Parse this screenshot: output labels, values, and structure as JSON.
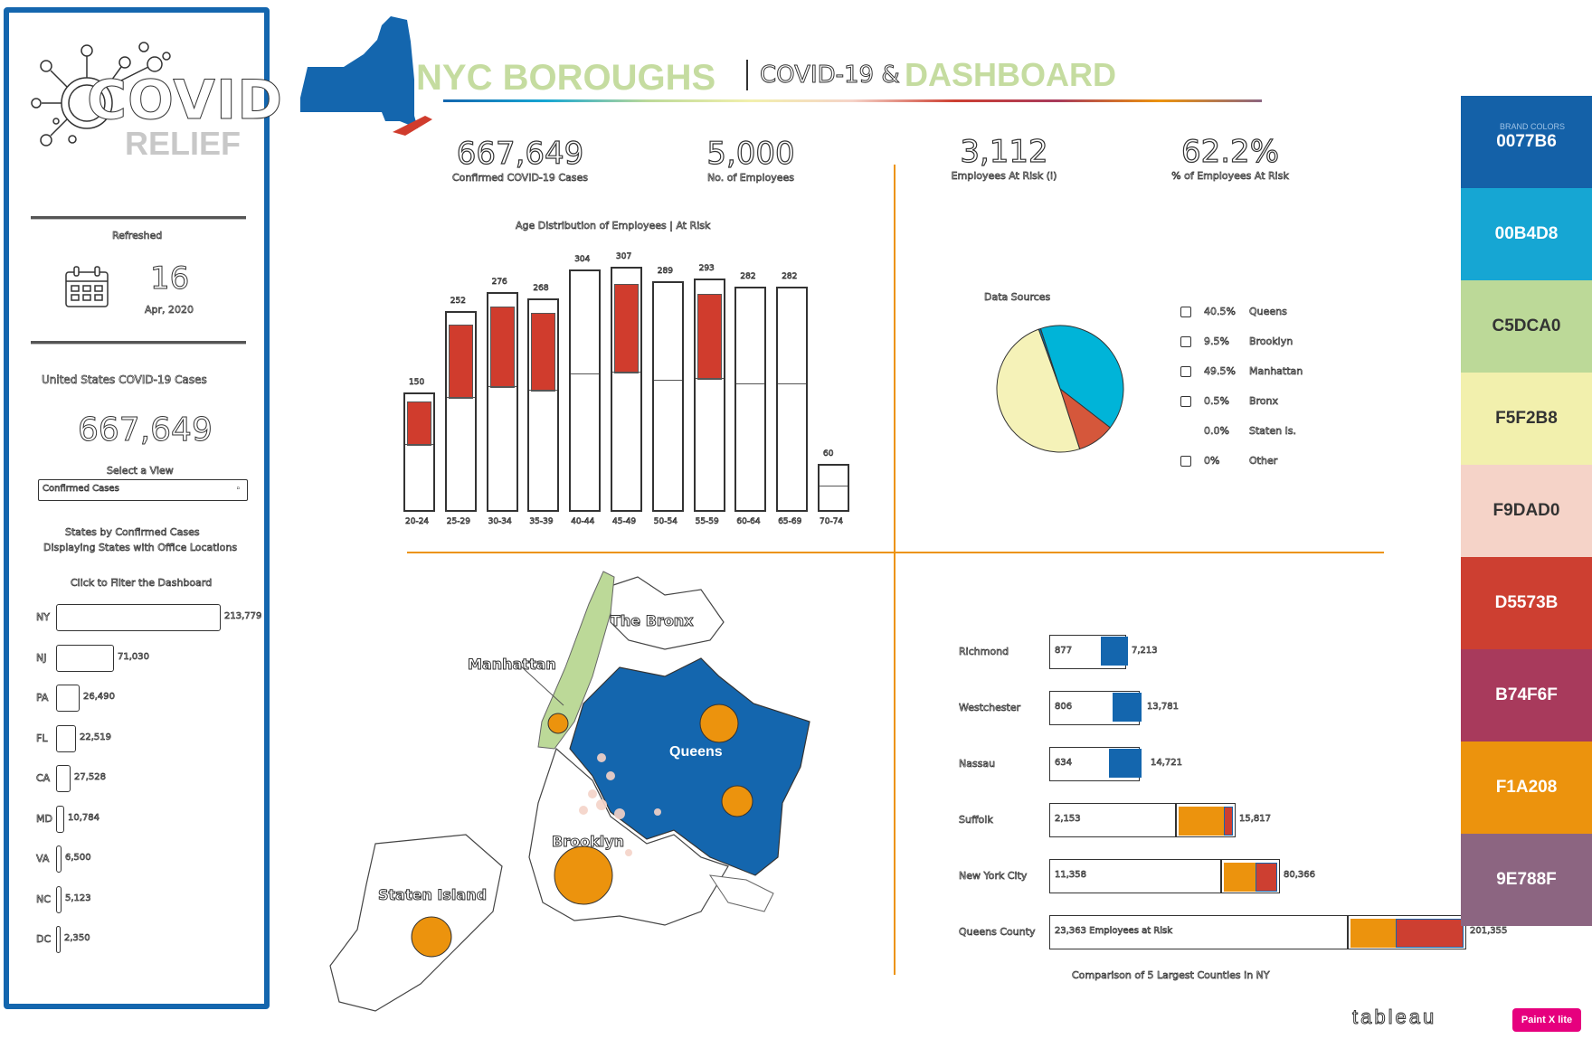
{
  "header": {
    "title_left": "NYC  BOROUGHS",
    "title_mid": "COVID-19 &",
    "title_right": "DASHBOARD"
  },
  "sidebar": {
    "logo_main": "COVID",
    "logo_sub": "RELIEF",
    "refreshed_label": "Refreshed",
    "date_day": "16",
    "date_month_year": "Apr, 2020",
    "us_cases_label": "United States COVID-19 Cases",
    "us_cases_value": "667,649",
    "select_view_label": "Select a View",
    "select_view_value": "Confirmed Cases",
    "states_title_1": "States by Confirmed Cases",
    "states_title_2": "Displaying States with Office Locations",
    "click_filter_label": "Click to Filter the Dashboard",
    "states": [
      {
        "code": "NY",
        "value": "213,779",
        "width": 180
      },
      {
        "code": "NJ",
        "value": "71,030",
        "width": 62
      },
      {
        "code": "PA",
        "value": "26,490",
        "width": 24
      },
      {
        "code": "FL",
        "value": "22,519",
        "width": 20
      },
      {
        "code": "CA",
        "value": "27,528",
        "width": 14
      },
      {
        "code": "MD",
        "value": "10,784",
        "width": 7
      },
      {
        "code": "VA",
        "value": "6,500",
        "width": 4
      },
      {
        "code": "NC",
        "value": "5,123",
        "width": 4
      },
      {
        "code": "DC",
        "value": "2,350",
        "width": 3
      }
    ]
  },
  "kpis": [
    {
      "value": "667,649",
      "label": "Confirmed COVID-19 Cases"
    },
    {
      "value": "5,000",
      "label": "No. of Employees"
    },
    {
      "value": "3,112",
      "label": "Employees At Risk (i)"
    },
    {
      "value": "62.2%",
      "label": "% of Employees At Risk"
    }
  ],
  "chart_data": [
    {
      "type": "bar",
      "title": "Age Distribution of Employees | At Risk",
      "categories": [
        "20-24",
        "25-29",
        "30-34",
        "35-39",
        "40-44",
        "45-49",
        "50-54",
        "55-59",
        "60-64",
        "65-69",
        "70-74"
      ],
      "series": [
        {
          "values": [
            150,
            252,
            276,
            268,
            304,
            307,
            289,
            293,
            282,
            282,
            60
          ]
        },
        {
          "values": [
            80,
            132,
            145,
            137,
            0,
            140,
            0,
            130,
            0,
            0,
            0
          ]
        }
      ],
      "data_labels": [
        "150",
        "252",
        "276",
        "268",
        "304",
        "307",
        "289",
        "293",
        "282",
        "282",
        "60"
      ]
    },
    {
      "type": "pie",
      "title": "Data Sources",
      "values": [
        40.5,
        9.5,
        49.5,
        0.5
      ],
      "colors": [
        "#00b4d8",
        "#d5573b",
        "#f5f2b8",
        "#0077b6"
      ],
      "legend": [
        {
          "pct": "40.5%",
          "name": "Queens"
        },
        {
          "pct": "9.5%",
          "name": "Brooklyn"
        },
        {
          "pct": "49.5%",
          "name": "Manhattan"
        },
        {
          "pct": "0.5%",
          "name": "Bronx"
        },
        {
          "pct": "0.0%",
          "name": "Staten Is."
        },
        {
          "pct": "0%",
          "name": "Other"
        }
      ]
    },
    {
      "type": "bar",
      "title": "Comparison of 5 Largest Counties in NY",
      "categories": [
        "Richmond",
        "Westchester",
        "Nassau",
        "Suffolk",
        "New York City",
        "Queens County"
      ],
      "rows": [
        {
          "left": "877",
          "right": "7,213",
          "box": 85,
          "blue": 30
        },
        {
          "left": "806",
          "right": "13,781",
          "box": 100,
          "blue": 32
        },
        {
          "left": "634",
          "right": "14,721",
          "box": 100,
          "blue": 36
        },
        {
          "left": "2,153",
          "right": "15,817",
          "box": 140,
          "orange": 50,
          "red": 10
        },
        {
          "left": "11,358",
          "right": "80,366",
          "box": 190,
          "orange": 35,
          "red": 24
        },
        {
          "left": "23,363  Employees at Risk",
          "right": "201,355",
          "box": 330,
          "orange": 50,
          "red": 75
        }
      ]
    }
  ],
  "map": {
    "labels": [
      "The Bronx",
      "Manhattan",
      "Queens",
      "Brooklyn",
      "Staten Island"
    ]
  },
  "palette": {
    "heading": "BRAND COLORS",
    "colors": [
      {
        "hex": "0077B6",
        "bg": "#1461a8"
      },
      {
        "hex": "00B4D8",
        "bg": "#16a6d3"
      },
      {
        "hex": "C5DCA0",
        "bg": "#bcd998"
      },
      {
        "hex": "F5F2B8",
        "bg": "#f2f0ad"
      },
      {
        "hex": "F9DAD0",
        "bg": "#f5d3c8"
      },
      {
        "hex": "D5573B",
        "bg": "#cd3f31"
      },
      {
        "hex": "B74F6F",
        "bg": "#a83a5c"
      },
      {
        "hex": "F1A208",
        "bg": "#ec930d"
      },
      {
        "hex": "9E788F",
        "bg": "#8c6581"
      }
    ]
  },
  "footer": {
    "brand": "tableau",
    "badge": "Paint X lite"
  }
}
